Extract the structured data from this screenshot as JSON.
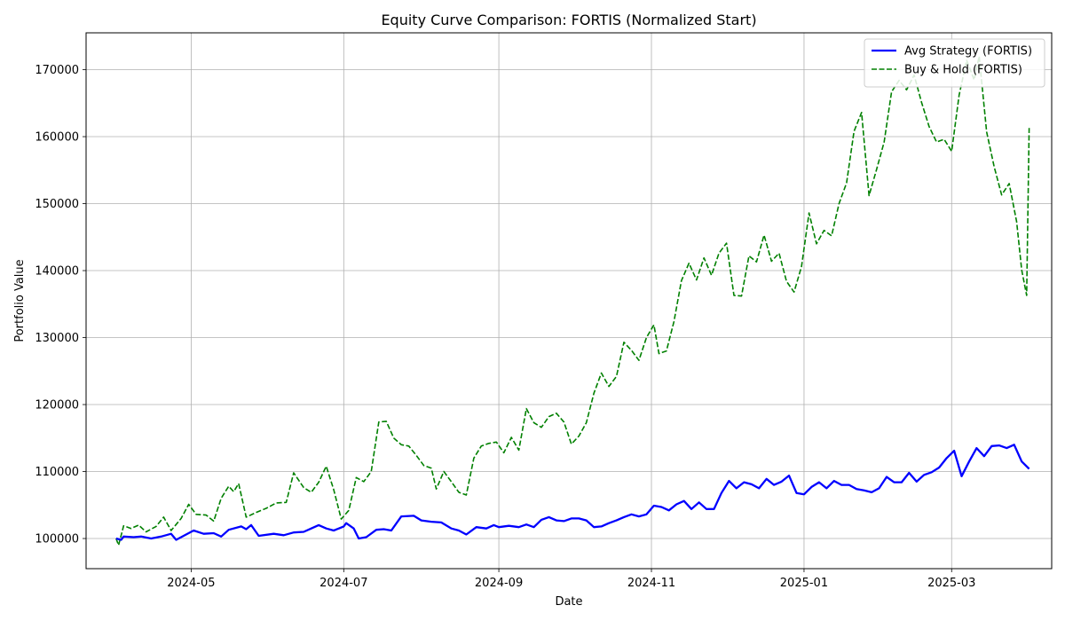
{
  "chart_data": {
    "type": "line",
    "title": "Equity Curve Comparison: FORTIS (Normalized Start)",
    "xlabel": "Date",
    "ylabel": "Portfolio Value",
    "x_range": [
      "2024-03-20",
      "2025-04-10"
    ],
    "ylim": [
      95500,
      175500
    ],
    "x_ticks": [
      {
        "date": "2024-05-01",
        "label": "2024-05"
      },
      {
        "date": "2024-07-01",
        "label": "2024-07"
      },
      {
        "date": "2024-09-01",
        "label": "2024-09"
      },
      {
        "date": "2024-11-01",
        "label": "2024-11"
      },
      {
        "date": "2025-01-01",
        "label": "2025-01"
      },
      {
        "date": "2025-03-01",
        "label": "2025-03"
      }
    ],
    "y_ticks": [
      {
        "value": 100000,
        "label": "100000"
      },
      {
        "value": 110000,
        "label": "110000"
      },
      {
        "value": 120000,
        "label": "120000"
      },
      {
        "value": 130000,
        "label": "130000"
      },
      {
        "value": 140000,
        "label": "140000"
      },
      {
        "value": 150000,
        "label": "150000"
      },
      {
        "value": 160000,
        "label": "160000"
      },
      {
        "value": 170000,
        "label": "170000"
      }
    ],
    "grid": true,
    "legend_position": "top-right",
    "series": [
      {
        "name": "Avg Strategy (FORTIS)",
        "color": "#0000ff",
        "style": "solid",
        "points": [
          [
            "2024-04-01",
            100000
          ],
          [
            "2024-04-03",
            99800
          ],
          [
            "2024-04-04",
            100300
          ],
          [
            "2024-04-08",
            100200
          ],
          [
            "2024-04-11",
            100300
          ],
          [
            "2024-04-15",
            100000
          ],
          [
            "2024-04-19",
            100300
          ],
          [
            "2024-04-23",
            100700
          ],
          [
            "2024-04-25",
            99800
          ],
          [
            "2024-04-29",
            100600
          ],
          [
            "2024-05-02",
            101200
          ],
          [
            "2024-05-06",
            100700
          ],
          [
            "2024-05-10",
            100800
          ],
          [
            "2024-05-13",
            100300
          ],
          [
            "2024-05-16",
            101300
          ],
          [
            "2024-05-21",
            101800
          ],
          [
            "2024-05-23",
            101400
          ],
          [
            "2024-05-25",
            102000
          ],
          [
            "2024-05-28",
            100400
          ],
          [
            "2024-06-03",
            100700
          ],
          [
            "2024-06-07",
            100500
          ],
          [
            "2024-06-11",
            100900
          ],
          [
            "2024-06-15",
            101000
          ],
          [
            "2024-06-18",
            101500
          ],
          [
            "2024-06-21",
            102000
          ],
          [
            "2024-06-24",
            101500
          ],
          [
            "2024-06-27",
            101200
          ],
          [
            "2024-07-01",
            101800
          ],
          [
            "2024-07-02",
            102300
          ],
          [
            "2024-07-05",
            101500
          ],
          [
            "2024-07-07",
            100000
          ],
          [
            "2024-07-10",
            100200
          ],
          [
            "2024-07-14",
            101300
          ],
          [
            "2024-07-17",
            101400
          ],
          [
            "2024-07-20",
            101200
          ],
          [
            "2024-07-24",
            103300
          ],
          [
            "2024-07-29",
            103400
          ],
          [
            "2024-08-01",
            102700
          ],
          [
            "2024-08-05",
            102500
          ],
          [
            "2024-08-09",
            102400
          ],
          [
            "2024-08-13",
            101500
          ],
          [
            "2024-08-16",
            101200
          ],
          [
            "2024-08-19",
            100600
          ],
          [
            "2024-08-23",
            101700
          ],
          [
            "2024-08-27",
            101500
          ],
          [
            "2024-08-30",
            102000
          ],
          [
            "2024-09-01",
            101700
          ],
          [
            "2024-09-05",
            101900
          ],
          [
            "2024-09-09",
            101700
          ],
          [
            "2024-09-12",
            102100
          ],
          [
            "2024-09-15",
            101700
          ],
          [
            "2024-09-18",
            102800
          ],
          [
            "2024-09-21",
            103200
          ],
          [
            "2024-09-24",
            102700
          ],
          [
            "2024-09-27",
            102600
          ],
          [
            "2024-09-30",
            103000
          ],
          [
            "2024-10-03",
            103000
          ],
          [
            "2024-10-06",
            102700
          ],
          [
            "2024-10-09",
            101700
          ],
          [
            "2024-10-12",
            101800
          ],
          [
            "2024-10-15",
            102300
          ],
          [
            "2024-10-18",
            102700
          ],
          [
            "2024-10-21",
            103200
          ],
          [
            "2024-10-24",
            103600
          ],
          [
            "2024-10-27",
            103300
          ],
          [
            "2024-10-30",
            103600
          ],
          [
            "2024-11-02",
            104900
          ],
          [
            "2024-11-05",
            104700
          ],
          [
            "2024-11-08",
            104200
          ],
          [
            "2024-11-11",
            105100
          ],
          [
            "2024-11-14",
            105600
          ],
          [
            "2024-11-17",
            104400
          ],
          [
            "2024-11-20",
            105400
          ],
          [
            "2024-11-23",
            104400
          ],
          [
            "2024-11-26",
            104400
          ],
          [
            "2024-11-29",
            106800
          ],
          [
            "2024-12-02",
            108600
          ],
          [
            "2024-12-05",
            107500
          ],
          [
            "2024-12-08",
            108400
          ],
          [
            "2024-12-11",
            108100
          ],
          [
            "2024-12-14",
            107500
          ],
          [
            "2024-12-17",
            108900
          ],
          [
            "2024-12-20",
            108000
          ],
          [
            "2024-12-23",
            108500
          ],
          [
            "2024-12-26",
            109400
          ],
          [
            "2024-12-29",
            106800
          ],
          [
            "2025-01-01",
            106600
          ],
          [
            "2025-01-04",
            107700
          ],
          [
            "2025-01-07",
            108400
          ],
          [
            "2025-01-10",
            107500
          ],
          [
            "2025-01-13",
            108600
          ],
          [
            "2025-01-16",
            108000
          ],
          [
            "2025-01-19",
            108000
          ],
          [
            "2025-01-22",
            107400
          ],
          [
            "2025-01-25",
            107200
          ],
          [
            "2025-01-28",
            106900
          ],
          [
            "2025-01-31",
            107500
          ],
          [
            "2025-02-03",
            109200
          ],
          [
            "2025-02-06",
            108400
          ],
          [
            "2025-02-09",
            108400
          ],
          [
            "2025-02-12",
            109800
          ],
          [
            "2025-02-15",
            108500
          ],
          [
            "2025-02-18",
            109500
          ],
          [
            "2025-02-21",
            109900
          ],
          [
            "2025-02-24",
            110600
          ],
          [
            "2025-02-27",
            112000
          ],
          [
            "2025-03-02",
            113100
          ],
          [
            "2025-03-05",
            109300
          ],
          [
            "2025-03-08",
            111500
          ],
          [
            "2025-03-11",
            113500
          ],
          [
            "2025-03-14",
            112300
          ],
          [
            "2025-03-17",
            113800
          ],
          [
            "2025-03-20",
            113900
          ],
          [
            "2025-03-23",
            113500
          ],
          [
            "2025-03-26",
            114000
          ],
          [
            "2025-03-29",
            111500
          ],
          [
            "2025-04-01",
            110400
          ]
        ]
      },
      {
        "name": "Buy & Hold (FORTIS)",
        "color": "#008000",
        "style": "dashed",
        "points": [
          [
            "2024-04-01",
            100000
          ],
          [
            "2024-04-02",
            99000
          ],
          [
            "2024-04-04",
            101900
          ],
          [
            "2024-04-07",
            101500
          ],
          [
            "2024-04-10",
            102000
          ],
          [
            "2024-04-13",
            101000
          ],
          [
            "2024-04-17",
            101800
          ],
          [
            "2024-04-20",
            103200
          ],
          [
            "2024-04-23",
            101200
          ],
          [
            "2024-04-27",
            103000
          ],
          [
            "2024-04-30",
            105100
          ],
          [
            "2024-05-03",
            103600
          ],
          [
            "2024-05-07",
            103500
          ],
          [
            "2024-05-10",
            102600
          ],
          [
            "2024-05-13",
            106000
          ],
          [
            "2024-05-16",
            107800
          ],
          [
            "2024-05-18",
            107000
          ],
          [
            "2024-05-20",
            108200
          ],
          [
            "2024-05-23",
            103200
          ],
          [
            "2024-05-27",
            103900
          ],
          [
            "2024-05-31",
            104500
          ],
          [
            "2024-06-04",
            105300
          ],
          [
            "2024-06-08",
            105400
          ],
          [
            "2024-06-11",
            109800
          ],
          [
            "2024-06-15",
            107600
          ],
          [
            "2024-06-18",
            106900
          ],
          [
            "2024-06-21",
            108400
          ],
          [
            "2024-06-24",
            110800
          ],
          [
            "2024-06-27",
            107300
          ],
          [
            "2024-06-30",
            102900
          ],
          [
            "2024-07-03",
            104200
          ],
          [
            "2024-07-06",
            109100
          ],
          [
            "2024-07-09",
            108500
          ],
          [
            "2024-07-12",
            110000
          ],
          [
            "2024-07-15",
            117400
          ],
          [
            "2024-07-18",
            117500
          ],
          [
            "2024-07-21",
            115000
          ],
          [
            "2024-07-24",
            114000
          ],
          [
            "2024-07-27",
            113800
          ],
          [
            "2024-07-30",
            112400
          ],
          [
            "2024-08-02",
            110900
          ],
          [
            "2024-08-05",
            110500
          ],
          [
            "2024-08-07",
            107400
          ],
          [
            "2024-08-10",
            110000
          ],
          [
            "2024-08-13",
            108500
          ],
          [
            "2024-08-16",
            106900
          ],
          [
            "2024-08-19",
            106500
          ],
          [
            "2024-08-22",
            112000
          ],
          [
            "2024-08-25",
            113800
          ],
          [
            "2024-08-28",
            114200
          ],
          [
            "2024-08-31",
            114400
          ],
          [
            "2024-09-03",
            112800
          ],
          [
            "2024-09-06",
            115100
          ],
          [
            "2024-09-09",
            113200
          ],
          [
            "2024-09-12",
            119400
          ],
          [
            "2024-09-15",
            117300
          ],
          [
            "2024-09-18",
            116600
          ],
          [
            "2024-09-21",
            118200
          ],
          [
            "2024-09-24",
            118700
          ],
          [
            "2024-09-27",
            117400
          ],
          [
            "2024-09-30",
            114100
          ],
          [
            "2024-10-03",
            115300
          ],
          [
            "2024-10-06",
            117300
          ],
          [
            "2024-10-09",
            121700
          ],
          [
            "2024-10-12",
            124700
          ],
          [
            "2024-10-15",
            122700
          ],
          [
            "2024-10-18",
            124200
          ],
          [
            "2024-10-21",
            129300
          ],
          [
            "2024-10-24",
            128100
          ],
          [
            "2024-10-27",
            126600
          ],
          [
            "2024-10-30",
            130000
          ],
          [
            "2024-11-02",
            131900
          ],
          [
            "2024-11-04",
            127600
          ],
          [
            "2024-11-07",
            128000
          ],
          [
            "2024-11-10",
            132400
          ],
          [
            "2024-11-13",
            138500
          ],
          [
            "2024-11-16",
            141100
          ],
          [
            "2024-11-19",
            138600
          ],
          [
            "2024-11-22",
            141900
          ],
          [
            "2024-11-25",
            139300
          ],
          [
            "2024-11-28",
            142600
          ],
          [
            "2024-12-01",
            144100
          ],
          [
            "2024-12-04",
            136300
          ],
          [
            "2024-12-07",
            136200
          ],
          [
            "2024-12-10",
            142200
          ],
          [
            "2024-12-13",
            141300
          ],
          [
            "2024-12-16",
            145300
          ],
          [
            "2024-12-19",
            141400
          ],
          [
            "2024-12-22",
            142600
          ],
          [
            "2024-12-25",
            138400
          ],
          [
            "2024-12-28",
            136800
          ],
          [
            "2024-12-31",
            140600
          ],
          [
            "2025-01-03",
            148600
          ],
          [
            "2025-01-06",
            144000
          ],
          [
            "2025-01-09",
            146000
          ],
          [
            "2025-01-12",
            145200
          ],
          [
            "2025-01-15",
            150000
          ],
          [
            "2025-01-18",
            153100
          ],
          [
            "2025-01-21",
            160800
          ],
          [
            "2025-01-24",
            163600
          ],
          [
            "2025-01-27",
            151200
          ],
          [
            "2025-01-30",
            155100
          ],
          [
            "2025-02-02",
            159200
          ],
          [
            "2025-02-05",
            166700
          ],
          [
            "2025-02-08",
            168400
          ],
          [
            "2025-02-11",
            167000
          ],
          [
            "2025-02-14",
            169200
          ],
          [
            "2025-02-17",
            165100
          ],
          [
            "2025-02-20",
            161500
          ],
          [
            "2025-02-23",
            159200
          ],
          [
            "2025-02-26",
            159600
          ],
          [
            "2025-03-01",
            157800
          ],
          [
            "2025-03-04",
            166200
          ],
          [
            "2025-03-07",
            171400
          ],
          [
            "2025-03-10",
            168500
          ],
          [
            "2025-03-12",
            172000
          ],
          [
            "2025-03-15",
            160700
          ],
          [
            "2025-03-18",
            155500
          ],
          [
            "2025-03-21",
            151300
          ],
          [
            "2025-03-24",
            153000
          ],
          [
            "2025-03-27",
            147300
          ],
          [
            "2025-03-29",
            140100
          ],
          [
            "2025-03-31",
            136300
          ],
          [
            "2025-04-01",
            161300
          ]
        ]
      }
    ]
  }
}
